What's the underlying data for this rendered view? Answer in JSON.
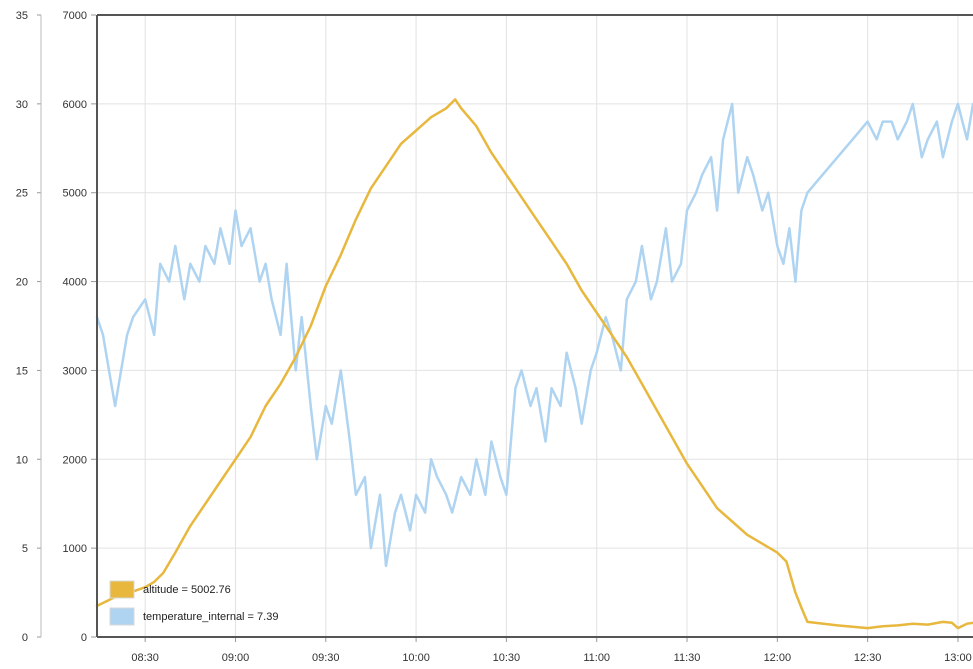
{
  "chart_data": {
    "type": "line",
    "x_type": "time",
    "xlim": [
      "08:14",
      "13:05"
    ],
    "x_tick_labels": [
      "08:30",
      "09:00",
      "09:30",
      "10:00",
      "10:30",
      "11:00",
      "11:30",
      "12:00",
      "12:30",
      "13:00"
    ],
    "y_left": {
      "range": [
        0,
        35
      ],
      "tick_labels": [
        "0",
        "5",
        "10",
        "15",
        "20",
        "25",
        "30",
        "35"
      ]
    },
    "y_right": {
      "range": [
        0,
        7000
      ],
      "tick_labels": [
        "0",
        "1000",
        "2000",
        "3000",
        "4000",
        "5000",
        "6000",
        "7000"
      ]
    },
    "grid": true,
    "legend_position": "bottom-left",
    "legend": [
      "altitude = 5002.76",
      "temperature_internal = 7.39"
    ],
    "series": [
      {
        "name": "altitude",
        "axis": "right",
        "color": "#e8b83e",
        "x": [
          "08:14",
          "08:17",
          "08:20",
          "08:25",
          "08:30",
          "08:33",
          "08:36",
          "08:40",
          "08:45",
          "08:50",
          "08:55",
          "09:00",
          "09:05",
          "09:10",
          "09:15",
          "09:20",
          "09:25",
          "09:30",
          "09:35",
          "09:40",
          "09:45",
          "09:50",
          "09:55",
          "10:00",
          "10:05",
          "10:10",
          "10:13",
          "10:15",
          "10:20",
          "10:25",
          "10:30",
          "10:35",
          "10:40",
          "10:45",
          "10:50",
          "10:55",
          "11:00",
          "11:05",
          "11:10",
          "11:15",
          "11:20",
          "11:25",
          "11:30",
          "11:35",
          "11:40",
          "11:45",
          "11:50",
          "11:55",
          "12:00",
          "12:03",
          "12:06",
          "12:08",
          "12:10",
          "12:20",
          "12:30",
          "12:35",
          "12:40",
          "12:45",
          "12:50",
          "12:55",
          "12:58",
          "13:00",
          "13:03",
          "13:05"
        ],
        "y": [
          350,
          400,
          450,
          500,
          560,
          620,
          720,
          950,
          1250,
          1500,
          1750,
          2000,
          2250,
          2600,
          2850,
          3150,
          3500,
          3950,
          4300,
          4700,
          5050,
          5300,
          5550,
          5700,
          5850,
          5950,
          6050,
          5950,
          5750,
          5450,
          5200,
          4950,
          4700,
          4450,
          4200,
          3900,
          3650,
          3400,
          3150,
          2850,
          2550,
          2250,
          1950,
          1700,
          1450,
          1300,
          1150,
          1050,
          950,
          850,
          500,
          330,
          170,
          130,
          100,
          120,
          130,
          150,
          140,
          170,
          160,
          100,
          150,
          160
        ]
      },
      {
        "name": "temperature_internal",
        "axis": "left",
        "color": "#afd4f1",
        "x": [
          "08:14",
          "08:16",
          "08:18",
          "08:20",
          "08:22",
          "08:24",
          "08:26",
          "08:30",
          "08:33",
          "08:35",
          "08:38",
          "08:40",
          "08:43",
          "08:45",
          "08:48",
          "08:50",
          "08:53",
          "08:55",
          "08:58",
          "09:00",
          "09:02",
          "09:05",
          "09:08",
          "09:10",
          "09:12",
          "09:15",
          "09:17",
          "09:20",
          "09:22",
          "09:25",
          "09:27",
          "09:30",
          "09:32",
          "09:35",
          "09:38",
          "09:40",
          "09:43",
          "09:45",
          "09:48",
          "09:50",
          "09:53",
          "09:55",
          "09:58",
          "10:00",
          "10:03",
          "10:05",
          "10:07",
          "10:10",
          "10:12",
          "10:15",
          "10:18",
          "10:20",
          "10:23",
          "10:25",
          "10:28",
          "10:30",
          "10:33",
          "10:35",
          "10:38",
          "10:40",
          "10:43",
          "10:45",
          "10:48",
          "10:50",
          "10:53",
          "10:55",
          "10:58",
          "11:00",
          "11:03",
          "11:05",
          "11:08",
          "11:10",
          "11:13",
          "11:15",
          "11:18",
          "11:20",
          "11:23",
          "11:25",
          "11:28",
          "11:30",
          "11:33",
          "11:35",
          "11:38",
          "11:40",
          "11:42",
          "11:45",
          "11:47",
          "11:50",
          "11:52",
          "11:55",
          "11:57",
          "12:00",
          "12:02",
          "12:04",
          "12:06",
          "12:08",
          "12:10",
          "12:20",
          "12:25",
          "12:30",
          "12:33",
          "12:35",
          "12:38",
          "12:40",
          "12:43",
          "12:45",
          "12:48",
          "12:50",
          "12:53",
          "12:55",
          "12:58",
          "13:00",
          "13:03",
          "13:05"
        ],
        "y": [
          18,
          17,
          15,
          13,
          15,
          17,
          18,
          19,
          17,
          21,
          20,
          22,
          19,
          21,
          20,
          22,
          21,
          23,
          21,
          24,
          22,
          23,
          20,
          21,
          19,
          17,
          21,
          15,
          18,
          13,
          10,
          13,
          12,
          15,
          11,
          8,
          9,
          5,
          8,
          4,
          7,
          8,
          6,
          8,
          7,
          10,
          9,
          8,
          7,
          9,
          8,
          10,
          8,
          11,
          9,
          8,
          14,
          15,
          13,
          14,
          11,
          14,
          13,
          16,
          14,
          12,
          15,
          16,
          18,
          17,
          15,
          19,
          20,
          22,
          19,
          20,
          23,
          20,
          21,
          24,
          25,
          26,
          27,
          24,
          28,
          30,
          25,
          27,
          26,
          24,
          25,
          22,
          21,
          23,
          20,
          24,
          25,
          27,
          28,
          29,
          28,
          29,
          29,
          28,
          29,
          30,
          27,
          28,
          29,
          27,
          29,
          30,
          28,
          30
        ]
      }
    ]
  }
}
